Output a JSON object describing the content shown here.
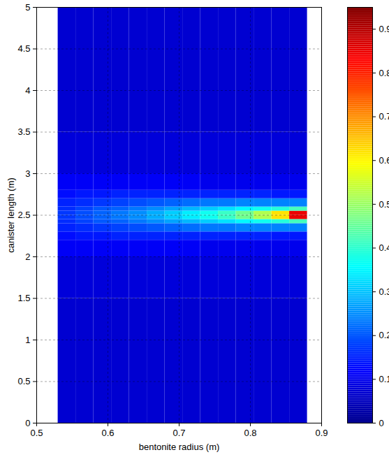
{
  "chart_data": {
    "type": "heatmap",
    "xlabel": "bentonite radius (m)",
    "ylabel": "canister length (m)",
    "xlim": [
      0.5,
      0.9
    ],
    "xticks": [
      0.5,
      0.6,
      0.7,
      0.8,
      0.9
    ],
    "ylim": [
      0,
      5
    ],
    "yticks": [
      0,
      0.5,
      1,
      1.5,
      2,
      2.5,
      3,
      3.5,
      4,
      4.5,
      5
    ],
    "grid": true,
    "x_edges": [
      0.53,
      0.555,
      0.58,
      0.605,
      0.63,
      0.655,
      0.68,
      0.705,
      0.73,
      0.755,
      0.78,
      0.805,
      0.83,
      0.855,
      0.88
    ],
    "y_edges": [
      0,
      1,
      1.5,
      2,
      2.2,
      2.3,
      2.4,
      2.45,
      2.5,
      2.55,
      2.6,
      2.7,
      2.8,
      3,
      3.5,
      5
    ],
    "cells": [
      [
        0.07,
        0.07,
        0.07,
        0.07,
        0.07,
        0.07,
        0.07,
        0.07,
        0.07,
        0.07,
        0.07,
        0.07,
        0.07,
        0.07
      ],
      [
        0.07,
        0.07,
        0.07,
        0.07,
        0.07,
        0.07,
        0.07,
        0.07,
        0.07,
        0.07,
        0.07,
        0.07,
        0.07,
        0.07
      ],
      [
        0.08,
        0.08,
        0.08,
        0.08,
        0.08,
        0.08,
        0.08,
        0.08,
        0.08,
        0.08,
        0.08,
        0.08,
        0.08,
        0.08
      ],
      [
        0.11,
        0.11,
        0.11,
        0.11,
        0.11,
        0.11,
        0.11,
        0.11,
        0.1,
        0.1,
        0.1,
        0.1,
        0.1,
        0.1
      ],
      [
        0.13,
        0.14,
        0.14,
        0.15,
        0.15,
        0.15,
        0.15,
        0.15,
        0.15,
        0.15,
        0.15,
        0.15,
        0.14,
        0.14
      ],
      [
        0.15,
        0.16,
        0.17,
        0.18,
        0.19,
        0.2,
        0.21,
        0.22,
        0.23,
        0.23,
        0.24,
        0.24,
        0.24,
        0.24
      ],
      [
        0.16,
        0.18,
        0.2,
        0.21,
        0.23,
        0.25,
        0.27,
        0.29,
        0.31,
        0.33,
        0.35,
        0.37,
        0.39,
        0.42
      ],
      [
        0.17,
        0.19,
        0.21,
        0.23,
        0.25,
        0.28,
        0.31,
        0.34,
        0.37,
        0.41,
        0.46,
        0.52,
        0.62,
        0.85
      ],
      [
        0.17,
        0.19,
        0.21,
        0.23,
        0.25,
        0.28,
        0.31,
        0.34,
        0.37,
        0.41,
        0.46,
        0.52,
        0.62,
        0.85
      ],
      [
        0.16,
        0.18,
        0.2,
        0.21,
        0.23,
        0.25,
        0.27,
        0.29,
        0.31,
        0.33,
        0.35,
        0.37,
        0.39,
        0.42
      ],
      [
        0.15,
        0.16,
        0.17,
        0.18,
        0.19,
        0.2,
        0.21,
        0.22,
        0.23,
        0.23,
        0.24,
        0.24,
        0.24,
        0.24
      ],
      [
        0.13,
        0.14,
        0.14,
        0.15,
        0.15,
        0.15,
        0.15,
        0.15,
        0.15,
        0.15,
        0.15,
        0.15,
        0.14,
        0.14
      ],
      [
        0.11,
        0.11,
        0.11,
        0.11,
        0.11,
        0.11,
        0.11,
        0.11,
        0.1,
        0.1,
        0.1,
        0.1,
        0.1,
        0.1
      ],
      [
        0.08,
        0.08,
        0.08,
        0.08,
        0.08,
        0.08,
        0.08,
        0.08,
        0.08,
        0.08,
        0.08,
        0.08,
        0.08,
        0.08
      ],
      [
        0.07,
        0.07,
        0.07,
        0.07,
        0.07,
        0.07,
        0.07,
        0.07,
        0.07,
        0.07,
        0.07,
        0.07,
        0.07,
        0.07
      ]
    ],
    "colorbar": {
      "lim": [
        0,
        0.95
      ],
      "ticks": [
        0,
        0.1,
        0.2,
        0.3,
        0.4,
        0.5,
        0.6,
        0.7,
        0.8,
        0.9
      ]
    }
  }
}
